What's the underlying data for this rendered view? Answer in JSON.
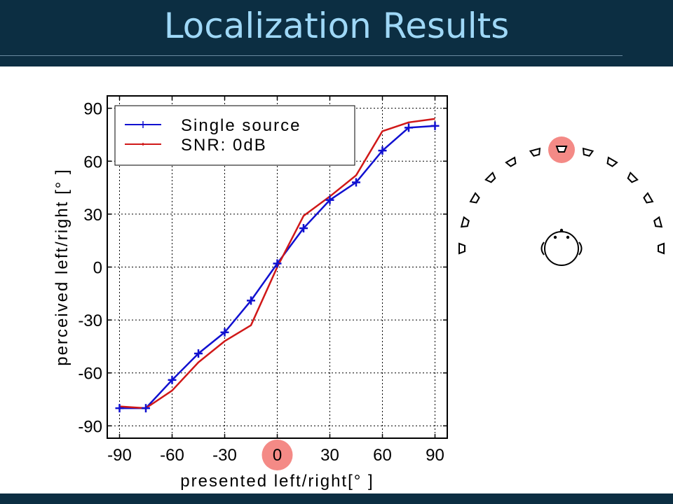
{
  "slide": {
    "title": "Localization Results"
  },
  "colors": {
    "header_bg": "#0c2e42",
    "title_text": "#9fd8f7",
    "single_source": "#1010d0",
    "snr": "#d01818",
    "highlight": "#f48a86"
  },
  "chart_data": {
    "type": "line",
    "xlabel": "presented left/right[°  ]",
    "ylabel": "perceived left/right [°  ]",
    "xlim": [
      -97,
      97
    ],
    "ylim": [
      -97,
      97
    ],
    "xticks": [
      -90,
      -60,
      -30,
      0,
      30,
      60,
      90
    ],
    "yticks": [
      90,
      60,
      30,
      0,
      -30,
      -60,
      -90
    ],
    "grid": true,
    "legend_position": "top-left",
    "highlighted_x": 0,
    "x": [
      -90,
      -75,
      -60,
      -45,
      -30,
      -15,
      0,
      15,
      30,
      45,
      60,
      75,
      90
    ],
    "series": [
      {
        "name": "Single source",
        "marker": "plus",
        "values": [
          -80,
          -80,
          -64,
          -49,
          -37,
          -19,
          2,
          22,
          38,
          48,
          66,
          79,
          80
        ]
      },
      {
        "name": "SNR: 0dB",
        "marker": "none",
        "values": [
          -79,
          -80,
          -70,
          -54,
          -42,
          -33,
          0,
          29,
          40,
          52,
          77,
          82,
          84
        ]
      }
    ]
  },
  "diagram": {
    "speaker_count": 13,
    "speaker_angles": [
      -90,
      -75,
      -60,
      -45,
      -30,
      -15,
      0,
      15,
      30,
      45,
      60,
      75,
      90
    ],
    "highlighted_angle": 0,
    "listener_icon": "head-icon"
  }
}
